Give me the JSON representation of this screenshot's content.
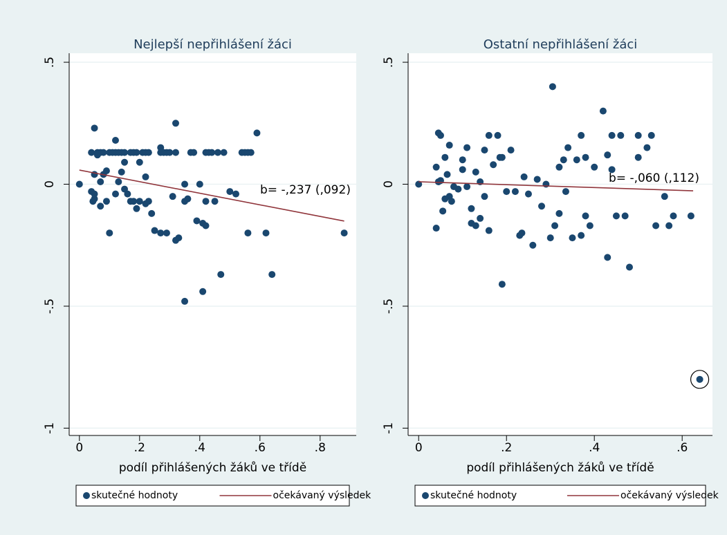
{
  "chart_data": [
    {
      "type": "scatter",
      "title": "Nejlepší nepřihlášení žáci",
      "x_label": "podíl přihlášených žáků ve třídě",
      "annotation": "b= -,237 (,092)",
      "xlim": [
        -0.034,
        0.92
      ],
      "ylim": [
        -1.03,
        0.537
      ],
      "xticks": [
        0,
        {
          "value": 0.2,
          "label": ".2"
        },
        {
          "value": 0.4,
          "label": ".4"
        },
        {
          "value": 0.6,
          "label": ".6"
        },
        {
          "value": 0.8,
          "label": ".8"
        }
      ],
      "yticks": [
        {
          "value": -1,
          "label": "-1"
        },
        {
          "value": -0.5,
          "label": "-.5"
        },
        0,
        {
          "value": 0.5,
          "label": ".5"
        }
      ],
      "grid": true,
      "series": [
        {
          "name": "skutečné hodnoty",
          "color": "#1a476f",
          "x": [
            0.04,
            0.06,
            0.07,
            0.08,
            0.1,
            0.11,
            0.12,
            0.13,
            0.14,
            0.15,
            0.17,
            0.18,
            0.19,
            0.21,
            0.22,
            0.23,
            0.27,
            0.28,
            0.29,
            0.3,
            0.32,
            0.37,
            0.38,
            0.42,
            0.43,
            0.44,
            0.46,
            0.48,
            0.54,
            0.55,
            0.56,
            0.57,
            0,
            0.05,
            0.12,
            0.32,
            0.27,
            0.59,
            0.05,
            0.06,
            0.07,
            0.08,
            0.09,
            0.04,
            0.045,
            0.05,
            0.05,
            0.07,
            0.09,
            0.1,
            0.12,
            0.13,
            0.14,
            0.15,
            0.15,
            0.16,
            0.17,
            0.18,
            0.19,
            0.2,
            0.2,
            0.22,
            0.22,
            0.23,
            0.24,
            0.25,
            0.27,
            0.29,
            0.31,
            0.32,
            0.33,
            0.35,
            0.35,
            0.36,
            0.35,
            0.39,
            0.4,
            0.41,
            0.42,
            0.42,
            0.41,
            0.45,
            0.47,
            0.5,
            0.52,
            0.56,
            0.62,
            0.64,
            0.88
          ],
          "values": [
            0.13,
            0.13,
            0.13,
            0.13,
            0.13,
            0.13,
            0.13,
            0.13,
            0.13,
            0.13,
            0.13,
            0.13,
            0.13,
            0.13,
            0.13,
            0.13,
            0.13,
            0.13,
            0.13,
            0.13,
            0.13,
            0.13,
            0.13,
            0.13,
            0.13,
            0.13,
            0.13,
            0.13,
            0.13,
            0.13,
            0.13,
            0.13,
            0,
            0.23,
            0.18,
            0.25,
            0.15,
            0.21,
            0.04,
            0.12,
            0.01,
            0.04,
            0.055,
            -0.03,
            -0.07,
            -0.06,
            -0.04,
            -0.09,
            -0.07,
            -0.2,
            -0.04,
            0.01,
            0.05,
            0.09,
            -0.02,
            -0.04,
            -0.07,
            -0.07,
            -0.1,
            -0.07,
            0.09,
            0.03,
            -0.08,
            -0.07,
            -0.12,
            -0.19,
            -0.2,
            -0.2,
            -0.05,
            -0.23,
            -0.22,
            0,
            -0.07,
            -0.06,
            -0.48,
            -0.15,
            0,
            -0.16,
            -0.07,
            -0.17,
            -0.44,
            -0.07,
            -0.37,
            -0.03,
            -0.04,
            -0.2,
            -0.2,
            -0.37,
            -0.2
          ]
        },
        {
          "name": "očekávaný výsledek",
          "color": "#90353b",
          "line": true,
          "x": [
            0,
            0.88
          ],
          "values": [
            0.058,
            -0.151
          ]
        }
      ]
    },
    {
      "type": "scatter",
      "title": "Ostatní nepřihlášení žáci",
      "x_label": "podíl přihlášených žáků ve třídě",
      "annotation": "b= -,060 (,112)",
      "xlim": [
        -0.024,
        0.669
      ],
      "ylim": [
        -1.03,
        0.537
      ],
      "xticks": [
        0,
        {
          "value": 0.2,
          "label": ".2"
        },
        {
          "value": 0.4,
          "label": ".4"
        },
        {
          "value": 0.6,
          "label": ".6"
        }
      ],
      "yticks": [
        {
          "value": -1,
          "label": "-1"
        },
        {
          "value": -0.5,
          "label": "-.5"
        },
        0,
        {
          "value": 0.5,
          "label": ".5"
        }
      ],
      "grid": true,
      "series": [
        {
          "name": "skutečné hodnoty",
          "color": "#1a476f",
          "x": [
            0,
            0.04,
            0.04,
            0.045,
            0.05,
            0.045,
            0.05,
            0.06,
            0.055,
            0.06,
            0.07,
            0.065,
            0.07,
            0.075,
            0.08,
            0.09,
            0.1,
            0.1,
            0.11,
            0.11,
            0.12,
            0.12,
            0.13,
            0.13,
            0.14,
            0.14,
            0.15,
            0.16,
            0.16,
            0.15,
            0.17,
            0.18,
            0.185,
            0.19,
            0.19,
            0.2,
            0.21,
            0.22,
            0.23,
            0.235,
            0.24,
            0.25,
            0.26,
            0.27,
            0.28,
            0.29,
            0.3,
            0.31,
            0.32,
            0.32,
            0.305,
            0.33,
            0.335,
            0.34,
            0.35,
            0.36,
            0.37,
            0.37,
            0.38,
            0.38,
            0.39,
            0.4,
            0.42,
            0.43,
            0.43,
            0.44,
            0.44,
            0.45,
            0.46,
            0.47,
            0.48,
            0.5,
            0.5,
            0.52,
            0.53,
            0.54,
            0.56,
            0.57,
            0.58,
            0.62,
            0.64
          ],
          "values": [
            0,
            0.07,
            -0.18,
            0.21,
            0.2,
            0.01,
            0.015,
            -0.06,
            -0.11,
            0.11,
            0.16,
            0.04,
            -0.05,
            -0.07,
            -0.01,
            -0.02,
            0.06,
            0.1,
            -0.01,
            0.15,
            -0.1,
            -0.16,
            -0.17,
            0.05,
            -0.14,
            0.01,
            0.14,
            0.2,
            -0.19,
            -0.05,
            0.08,
            0.2,
            0.11,
            -0.41,
            0.11,
            -0.03,
            0.14,
            -0.03,
            -0.21,
            -0.2,
            0.03,
            -0.04,
            -0.25,
            0.02,
            -0.09,
            0,
            -0.22,
            -0.17,
            0.07,
            -0.12,
            0.4,
            0.1,
            -0.03,
            0.15,
            -0.22,
            0.1,
            0.2,
            -0.21,
            0.11,
            -0.13,
            -0.17,
            0.07,
            0.3,
            -0.3,
            0.12,
            0.2,
            0.06,
            -0.13,
            0.2,
            -0.13,
            -0.34,
            0.2,
            0.11,
            0.15,
            0.2,
            -0.17,
            -0.05,
            -0.17,
            -0.13,
            -0.13,
            -0.8
          ]
        },
        {
          "name": "očekávaný výsledek",
          "color": "#90353b",
          "line": true,
          "x": [
            0,
            0.625
          ],
          "values": [
            0.01,
            -0.027
          ]
        }
      ]
    }
  ]
}
